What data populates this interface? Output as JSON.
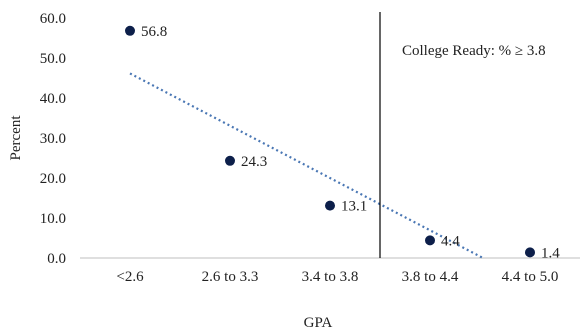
{
  "chart_data": {
    "type": "scatter",
    "xlabel": "GPA",
    "ylabel": "Percent",
    "categories": [
      "<2.6",
      "2.6 to 3.3",
      "3.4 to 3.8",
      "3.8 to 4.4",
      "4.4 to 5.0"
    ],
    "values": [
      56.8,
      24.3,
      13.1,
      4.4,
      1.4
    ],
    "data_labels": [
      "56.8",
      "24.3",
      "13.1",
      "4.4",
      "1.4"
    ],
    "ylim": [
      0,
      60
    ],
    "yticks": [
      "0.0",
      "10.0",
      "20.0",
      "30.0",
      "40.0",
      "50.0",
      "60.0"
    ],
    "grid": false,
    "trendline": {
      "type": "linear",
      "style": "dotted"
    },
    "reference_line": {
      "position": "between 3.4 to 3.8 and 3.8 to 4.4",
      "label": "College Ready: % ≥ 3.8"
    },
    "colors": {
      "points": "#0d1f4a",
      "trendline": "#4a77b4",
      "reference": "#000000",
      "axis": "#bfbfbf"
    }
  }
}
